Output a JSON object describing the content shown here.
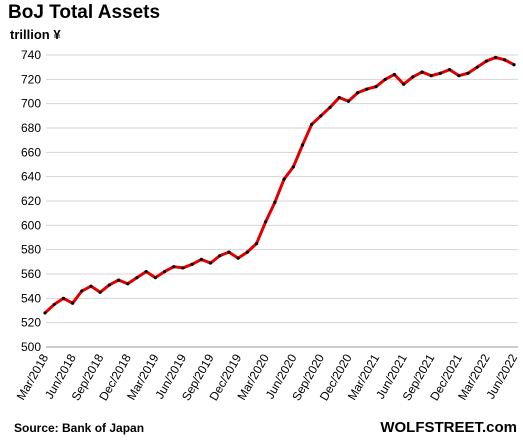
{
  "header": {
    "title": "BoJ Total Assets",
    "unit": "trillion ¥"
  },
  "footer": {
    "source": "Source: Bank of Japan",
    "brand": "WOLFSTREET.com"
  },
  "colors": {
    "line": "#e00000",
    "marker": "#000000",
    "grid": "#d4d4d4"
  },
  "chart_data": {
    "type": "line",
    "title": "BoJ Total Assets",
    "xlabel": "",
    "ylabel": "trillion ¥",
    "ylim": [
      500,
      740
    ],
    "yticks": [
      500,
      520,
      540,
      560,
      580,
      600,
      620,
      640,
      660,
      680,
      700,
      720,
      740
    ],
    "grid": true,
    "legend": "none",
    "x": [
      "Mar/2018",
      "Apr/2018",
      "May/2018",
      "Jun/2018",
      "Jul/2018",
      "Aug/2018",
      "Sep/2018",
      "Oct/2018",
      "Nov/2018",
      "Dec/2018",
      "Jan/2019",
      "Feb/2019",
      "Mar/2019",
      "Apr/2019",
      "May/2019",
      "Jun/2019",
      "Jul/2019",
      "Aug/2019",
      "Sep/2019",
      "Oct/2019",
      "Nov/2019",
      "Dec/2019",
      "Jan/2020",
      "Feb/2020",
      "Mar/2020",
      "Apr/2020",
      "May/2020",
      "Jun/2020",
      "Jul/2020",
      "Aug/2020",
      "Sep/2020",
      "Oct/2020",
      "Nov/2020",
      "Dec/2020",
      "Jan/2021",
      "Feb/2021",
      "Mar/2021",
      "Apr/2021",
      "May/2021",
      "Jun/2021",
      "Jul/2021",
      "Aug/2021",
      "Sep/2021",
      "Oct/2021",
      "Nov/2021",
      "Dec/2021",
      "Jan/2022",
      "Feb/2022",
      "Mar/2022",
      "Apr/2022",
      "May/2022",
      "Jun/2022"
    ],
    "x_tick_labels": [
      "Mar/2018",
      "Jun/2018",
      "Sep/2018",
      "Dec/2018",
      "Mar/2019",
      "Jun/2019",
      "Sep/2019",
      "Dec/2019",
      "Mar/2020",
      "Jun/2020",
      "Sep/2020",
      "Dec/2020",
      "Mar/2021",
      "Jun/2021",
      "Sep/2021",
      "Dec/2021",
      "Mar/2022",
      "Jun/2022"
    ],
    "series": [
      {
        "values": [
          528,
          535,
          540,
          536,
          546,
          550,
          545,
          551,
          555,
          552,
          557,
          562,
          557,
          562,
          566,
          565,
          568,
          572,
          569,
          575,
          578,
          573,
          578,
          585,
          603,
          619,
          638,
          648,
          666,
          683,
          690,
          697,
          705,
          702,
          709,
          712,
          714,
          720,
          724,
          716,
          722,
          726,
          723,
          725,
          728,
          723,
          725,
          730,
          735,
          738,
          736,
          732
        ]
      }
    ]
  }
}
